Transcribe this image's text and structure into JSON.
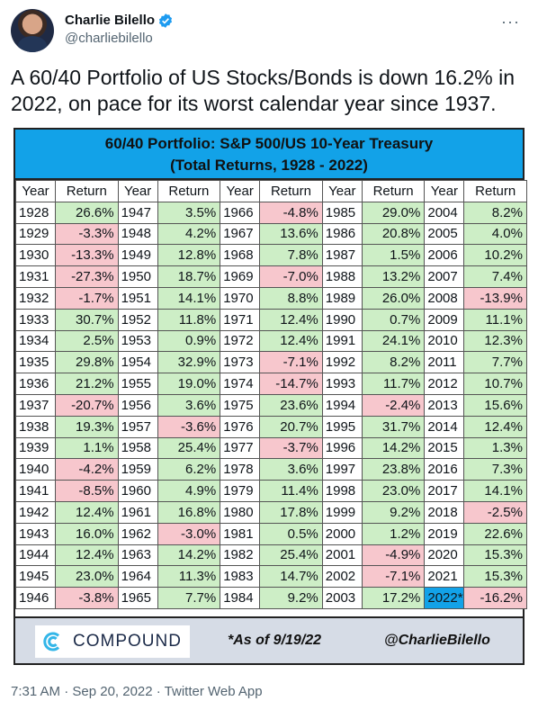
{
  "author": {
    "name": "Charlie Bilello",
    "handle": "@charliebilello"
  },
  "tweet": {
    "text": "A 60/40 Portfolio of US Stocks/Bonds is down 16.2% in 2022, on pace for its worst calendar year since 1937."
  },
  "image": {
    "title_line1": "60/40 Portfolio: S&P 500/US 10-Year Treasury",
    "title_line2": "(Total Returns, 1928 - 2022)",
    "col_year": "Year",
    "col_return": "Return",
    "columns": [
      [
        [
          "1928",
          "26.6%"
        ],
        [
          "1929",
          "-3.3%"
        ],
        [
          "1930",
          "-13.3%"
        ],
        [
          "1931",
          "-27.3%"
        ],
        [
          "1932",
          "-1.7%"
        ],
        [
          "1933",
          "30.7%"
        ],
        [
          "1934",
          "2.5%"
        ],
        [
          "1935",
          "29.8%"
        ],
        [
          "1936",
          "21.2%"
        ],
        [
          "1937",
          "-20.7%"
        ],
        [
          "1938",
          "19.3%"
        ],
        [
          "1939",
          "1.1%"
        ],
        [
          "1940",
          "-4.2%"
        ],
        [
          "1941",
          "-8.5%"
        ],
        [
          "1942",
          "12.4%"
        ],
        [
          "1943",
          "16.0%"
        ],
        [
          "1944",
          "12.4%"
        ],
        [
          "1945",
          "23.0%"
        ],
        [
          "1946",
          "-3.8%"
        ]
      ],
      [
        [
          "1947",
          "3.5%"
        ],
        [
          "1948",
          "4.2%"
        ],
        [
          "1949",
          "12.8%"
        ],
        [
          "1950",
          "18.7%"
        ],
        [
          "1951",
          "14.1%"
        ],
        [
          "1952",
          "11.8%"
        ],
        [
          "1953",
          "0.9%"
        ],
        [
          "1954",
          "32.9%"
        ],
        [
          "1955",
          "19.0%"
        ],
        [
          "1956",
          "3.6%"
        ],
        [
          "1957",
          "-3.6%"
        ],
        [
          "1958",
          "25.4%"
        ],
        [
          "1959",
          "6.2%"
        ],
        [
          "1960",
          "4.9%"
        ],
        [
          "1961",
          "16.8%"
        ],
        [
          "1962",
          "-3.0%"
        ],
        [
          "1963",
          "14.2%"
        ],
        [
          "1964",
          "11.3%"
        ],
        [
          "1965",
          "7.7%"
        ]
      ],
      [
        [
          "1966",
          "-4.8%"
        ],
        [
          "1967",
          "13.6%"
        ],
        [
          "1968",
          "7.8%"
        ],
        [
          "1969",
          "-7.0%"
        ],
        [
          "1970",
          "8.8%"
        ],
        [
          "1971",
          "12.4%"
        ],
        [
          "1972",
          "12.4%"
        ],
        [
          "1973",
          "-7.1%"
        ],
        [
          "1974",
          "-14.7%"
        ],
        [
          "1975",
          "23.6%"
        ],
        [
          "1976",
          "20.7%"
        ],
        [
          "1977",
          "-3.7%"
        ],
        [
          "1978",
          "3.6%"
        ],
        [
          "1979",
          "11.4%"
        ],
        [
          "1980",
          "17.8%"
        ],
        [
          "1981",
          "0.5%"
        ],
        [
          "1982",
          "25.4%"
        ],
        [
          "1983",
          "14.7%"
        ],
        [
          "1984",
          "9.2%"
        ]
      ],
      [
        [
          "1985",
          "29.0%"
        ],
        [
          "1986",
          "20.8%"
        ],
        [
          "1987",
          "1.5%"
        ],
        [
          "1988",
          "13.2%"
        ],
        [
          "1989",
          "26.0%"
        ],
        [
          "1990",
          "0.7%"
        ],
        [
          "1991",
          "24.1%"
        ],
        [
          "1992",
          "8.2%"
        ],
        [
          "1993",
          "11.7%"
        ],
        [
          "1994",
          "-2.4%"
        ],
        [
          "1995",
          "31.7%"
        ],
        [
          "1996",
          "14.2%"
        ],
        [
          "1997",
          "23.8%"
        ],
        [
          "1998",
          "23.0%"
        ],
        [
          "1999",
          "9.2%"
        ],
        [
          "2000",
          "1.2%"
        ],
        [
          "2001",
          "-4.9%"
        ],
        [
          "2002",
          "-7.1%"
        ],
        [
          "2003",
          "17.2%"
        ]
      ],
      [
        [
          "2004",
          "8.2%"
        ],
        [
          "2005",
          "4.0%"
        ],
        [
          "2006",
          "10.2%"
        ],
        [
          "2007",
          "7.4%"
        ],
        [
          "2008",
          "-13.9%"
        ],
        [
          "2009",
          "11.1%"
        ],
        [
          "2010",
          "12.3%"
        ],
        [
          "2011",
          "7.7%"
        ],
        [
          "2012",
          "10.7%"
        ],
        [
          "2013",
          "15.6%"
        ],
        [
          "2014",
          "12.4%"
        ],
        [
          "2015",
          "1.3%"
        ],
        [
          "2016",
          "7.3%"
        ],
        [
          "2017",
          "14.1%"
        ],
        [
          "2018",
          "-2.5%"
        ],
        [
          "2019",
          "22.6%"
        ],
        [
          "2020",
          "15.3%"
        ],
        [
          "2021",
          "15.3%"
        ],
        [
          "2022*",
          "-16.2%"
        ]
      ]
    ],
    "highlight_year": "2022*",
    "footer_logo_text": "COMPOUND",
    "footer_asof": "*As of 9/19/22",
    "footer_handle": "@CharlieBilello"
  },
  "meta": {
    "timestamp": "7:31 AM · Sep 20, 2022 · Twitter Web App"
  },
  "colors": {
    "positive": "#cdeec6",
    "negative": "#f7c7cd",
    "title_bg": "#12a2e8"
  }
}
